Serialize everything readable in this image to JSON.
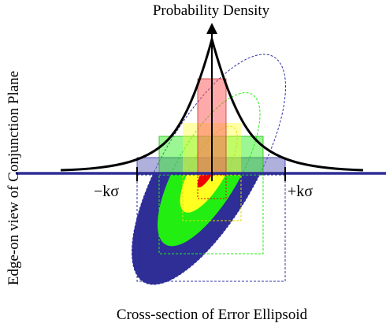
{
  "title": "Probability Density",
  "ylabel": "Edge-on view of Conjunction Plane",
  "xlabel": "Cross-section of Error Ellipsoid",
  "minus_k_label": "−kσ",
  "plus_k_label": "+kσ",
  "colors": {
    "plane": "#2e2e96",
    "outer": "#2e2e96",
    "green": "#22ee11",
    "yellow": "#ffff22",
    "red": "#ee0000",
    "curve": "#000000"
  }
}
